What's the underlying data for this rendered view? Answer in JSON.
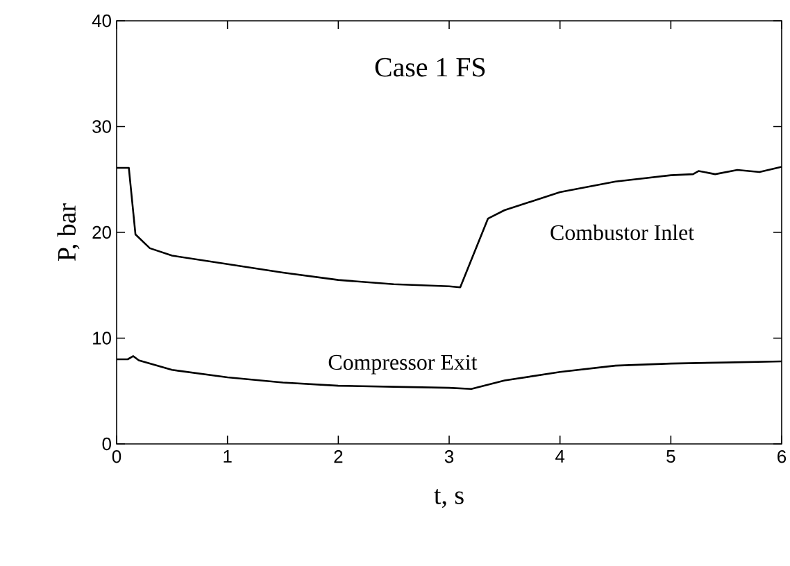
{
  "chart_data": {
    "type": "line",
    "title": "Case 1 FS",
    "xlabel": "t, s",
    "ylabel": "P, bar",
    "xlim": [
      0,
      6
    ],
    "ylim": [
      0,
      40
    ],
    "xticks": [
      0,
      1,
      2,
      3,
      4,
      5,
      6
    ],
    "yticks": [
      0,
      10,
      20,
      30,
      40
    ],
    "line_style": "solid",
    "marker": "none",
    "series": [
      {
        "name": "Combustor Inlet",
        "color": "#000000",
        "x": [
          0,
          0.11,
          0.17,
          0.3,
          0.5,
          1,
          1.5,
          2,
          2.5,
          3,
          3.1,
          3.35,
          3.5,
          4,
          4.5,
          5,
          5.2,
          5.25,
          5.4,
          5.6,
          5.8,
          6
        ],
        "values": [
          26.1,
          26.1,
          19.8,
          18.5,
          17.8,
          17.0,
          16.2,
          15.5,
          15.1,
          14.9,
          14.8,
          21.3,
          22.1,
          23.8,
          24.8,
          25.4,
          25.5,
          25.8,
          25.5,
          25.9,
          25.7,
          26.2
        ]
      },
      {
        "name": "Compressor Exit",
        "color": "#000000",
        "x": [
          0,
          0.1,
          0.15,
          0.2,
          0.5,
          1,
          1.5,
          2,
          2.5,
          3,
          3.2,
          3.5,
          4,
          4.5,
          5,
          5.5,
          6
        ],
        "values": [
          8.0,
          8.0,
          8.3,
          7.9,
          7.0,
          6.3,
          5.8,
          5.5,
          5.4,
          5.3,
          5.2,
          6.0,
          6.8,
          7.4,
          7.6,
          7.7,
          7.8
        ]
      }
    ]
  }
}
